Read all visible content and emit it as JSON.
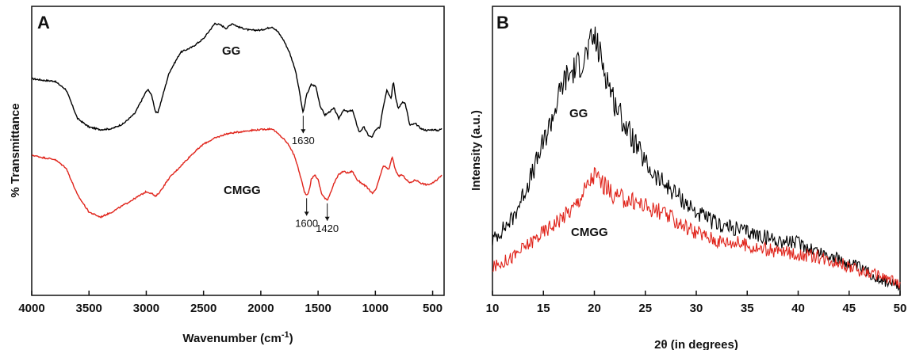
{
  "chart_data": [
    {
      "type": "line",
      "panel_label": "A",
      "xlabel": "Wavenumber (cm",
      "xlabel_sup": "-1",
      "xlabel_close": ")",
      "ylabel": "% Transmittance",
      "xlim": [
        4000,
        400
      ],
      "ylim": [
        0,
        3.4
      ],
      "xticks": [
        "4000",
        "3500",
        "3000",
        "2500",
        "2000",
        "1500",
        "1000",
        "500"
      ],
      "yticks_shown": false,
      "series": [
        {
          "name": "GG",
          "color": "#000000",
          "points": [
            [
              4000,
              2.55
            ],
            [
              3900,
              2.53
            ],
            [
              3800,
              2.52
            ],
            [
              3700,
              2.42
            ],
            [
              3600,
              2.08
            ],
            [
              3500,
              1.98
            ],
            [
              3400,
              1.95
            ],
            [
              3300,
              1.96
            ],
            [
              3200,
              2.02
            ],
            [
              3100,
              2.14
            ],
            [
              3000,
              2.4
            ],
            [
              2980,
              2.42
            ],
            [
              2950,
              2.34
            ],
            [
              2920,
              2.16
            ],
            [
              2900,
              2.14
            ],
            [
              2850,
              2.38
            ],
            [
              2800,
              2.62
            ],
            [
              2700,
              2.86
            ],
            [
              2600,
              2.92
            ],
            [
              2500,
              3.02
            ],
            [
              2400,
              3.2
            ],
            [
              2350,
              3.18
            ],
            [
              2300,
              3.14
            ],
            [
              2250,
              3.2
            ],
            [
              2200,
              3.16
            ],
            [
              2100,
              3.12
            ],
            [
              2000,
              3.12
            ],
            [
              1950,
              3.14
            ],
            [
              1900,
              3.16
            ],
            [
              1850,
              3.1
            ],
            [
              1800,
              3.0
            ],
            [
              1750,
              2.86
            ],
            [
              1700,
              2.66
            ],
            [
              1660,
              2.38
            ],
            [
              1640,
              2.2
            ],
            [
              1630,
              2.15
            ],
            [
              1620,
              2.22
            ],
            [
              1600,
              2.36
            ],
            [
              1560,
              2.48
            ],
            [
              1520,
              2.46
            ],
            [
              1480,
              2.22
            ],
            [
              1440,
              2.12
            ],
            [
              1420,
              2.14
            ],
            [
              1400,
              2.16
            ],
            [
              1360,
              2.2
            ],
            [
              1320,
              2.08
            ],
            [
              1280,
              2.18
            ],
            [
              1240,
              2.16
            ],
            [
              1200,
              2.18
            ],
            [
              1160,
              2.0
            ],
            [
              1140,
              1.92
            ],
            [
              1100,
              1.98
            ],
            [
              1060,
              1.88
            ],
            [
              1030,
              1.86
            ],
            [
              1000,
              1.94
            ],
            [
              960,
              1.98
            ],
            [
              940,
              2.16
            ],
            [
              900,
              2.42
            ],
            [
              880,
              2.36
            ],
            [
              860,
              2.32
            ],
            [
              850,
              2.48
            ],
            [
              840,
              2.5
            ],
            [
              820,
              2.3
            ],
            [
              800,
              2.2
            ],
            [
              780,
              2.24
            ],
            [
              760,
              2.28
            ],
            [
              740,
              2.26
            ],
            [
              720,
              2.14
            ],
            [
              700,
              2.0
            ],
            [
              650,
              2.02
            ],
            [
              600,
              1.96
            ],
            [
              550,
              1.94
            ],
            [
              500,
              1.95
            ],
            [
              450,
              1.94
            ],
            [
              420,
              1.96
            ]
          ]
        },
        {
          "name": "CMGG",
          "color": "#e0241b",
          "points": [
            [
              4000,
              1.65
            ],
            [
              3900,
              1.62
            ],
            [
              3800,
              1.6
            ],
            [
              3700,
              1.5
            ],
            [
              3600,
              1.18
            ],
            [
              3500,
              0.98
            ],
            [
              3400,
              0.92
            ],
            [
              3300,
              0.98
            ],
            [
              3200,
              1.06
            ],
            [
              3100,
              1.14
            ],
            [
              3000,
              1.22
            ],
            [
              2950,
              1.2
            ],
            [
              2920,
              1.16
            ],
            [
              2880,
              1.22
            ],
            [
              2800,
              1.38
            ],
            [
              2700,
              1.52
            ],
            [
              2600,
              1.66
            ],
            [
              2500,
              1.78
            ],
            [
              2400,
              1.85
            ],
            [
              2300,
              1.9
            ],
            [
              2200,
              1.92
            ],
            [
              2100,
              1.94
            ],
            [
              2000,
              1.95
            ],
            [
              1900,
              1.96
            ],
            [
              1850,
              1.9
            ],
            [
              1800,
              1.84
            ],
            [
              1750,
              1.76
            ],
            [
              1700,
              1.62
            ],
            [
              1650,
              1.38
            ],
            [
              1620,
              1.22
            ],
            [
              1600,
              1.18
            ],
            [
              1580,
              1.22
            ],
            [
              1560,
              1.36
            ],
            [
              1530,
              1.42
            ],
            [
              1500,
              1.36
            ],
            [
              1470,
              1.2
            ],
            [
              1440,
              1.14
            ],
            [
              1420,
              1.12
            ],
            [
              1400,
              1.18
            ],
            [
              1360,
              1.32
            ],
            [
              1320,
              1.42
            ],
            [
              1280,
              1.46
            ],
            [
              1240,
              1.44
            ],
            [
              1200,
              1.46
            ],
            [
              1160,
              1.36
            ],
            [
              1120,
              1.32
            ],
            [
              1080,
              1.28
            ],
            [
              1040,
              1.22
            ],
            [
              1020,
              1.2
            ],
            [
              990,
              1.26
            ],
            [
              960,
              1.4
            ],
            [
              930,
              1.52
            ],
            [
              900,
              1.5
            ],
            [
              880,
              1.48
            ],
            [
              860,
              1.6
            ],
            [
              850,
              1.62
            ],
            [
              830,
              1.5
            ],
            [
              800,
              1.4
            ],
            [
              770,
              1.42
            ],
            [
              740,
              1.38
            ],
            [
              700,
              1.32
            ],
            [
              650,
              1.36
            ],
            [
              600,
              1.32
            ],
            [
              550,
              1.3
            ],
            [
              500,
              1.32
            ],
            [
              460,
              1.36
            ],
            [
              420,
              1.42
            ]
          ]
        }
      ],
      "labels": {
        "series_a": "GG",
        "series_b": "CMGG"
      },
      "annotations": [
        {
          "text": "1630",
          "x": 1630,
          "series": "GG"
        },
        {
          "text": "1600",
          "x": 1600,
          "series": "CMGG"
        },
        {
          "text": "1420",
          "x": 1420,
          "series": "CMGG"
        }
      ]
    },
    {
      "type": "line",
      "panel_label": "B",
      "xlabel": "2θ (in degrees)",
      "ylabel": "Intensity (a.u.)",
      "xlim": [
        10,
        50
      ],
      "ylim": [
        0,
        1.05
      ],
      "xticks": [
        "10",
        "15",
        "20",
        "25",
        "30",
        "35",
        "40",
        "45",
        "50"
      ],
      "yticks_shown": false,
      "series": [
        {
          "name": "GG",
          "color": "#000000",
          "points": [
            [
              10,
              0.2
            ],
            [
              12,
              0.28
            ],
            [
              14,
              0.45
            ],
            [
              16,
              0.66
            ],
            [
              17,
              0.78
            ],
            [
              18,
              0.82
            ],
            [
              19,
              0.86
            ],
            [
              20,
              0.94
            ],
            [
              21,
              0.82
            ],
            [
              22,
              0.7
            ],
            [
              23,
              0.62
            ],
            [
              24,
              0.55
            ],
            [
              25,
              0.48
            ],
            [
              26,
              0.43
            ],
            [
              27,
              0.4
            ],
            [
              28,
              0.37
            ],
            [
              30,
              0.3
            ],
            [
              32,
              0.26
            ],
            [
              34,
              0.24
            ],
            [
              36,
              0.22
            ],
            [
              38,
              0.2
            ],
            [
              40,
              0.19
            ],
            [
              42,
              0.16
            ],
            [
              44,
              0.13
            ],
            [
              46,
              0.1
            ],
            [
              48,
              0.06
            ],
            [
              50,
              0.03
            ]
          ]
        },
        {
          "name": "CMGG",
          "color": "#e0241b",
          "points": [
            [
              10,
              0.1
            ],
            [
              12,
              0.14
            ],
            [
              14,
              0.2
            ],
            [
              16,
              0.26
            ],
            [
              18,
              0.32
            ],
            [
              20,
              0.44
            ],
            [
              21,
              0.4
            ],
            [
              22,
              0.36
            ],
            [
              24,
              0.34
            ],
            [
              26,
              0.31
            ],
            [
              28,
              0.27
            ],
            [
              30,
              0.23
            ],
            [
              32,
              0.2
            ],
            [
              34,
              0.19
            ],
            [
              36,
              0.17
            ],
            [
              38,
              0.16
            ],
            [
              40,
              0.15
            ],
            [
              42,
              0.14
            ],
            [
              44,
              0.12
            ],
            [
              46,
              0.09
            ],
            [
              48,
              0.07
            ],
            [
              50,
              0.04
            ]
          ]
        }
      ],
      "labels": {
        "series_a": "GG",
        "series_b": "CMGG"
      }
    }
  ]
}
